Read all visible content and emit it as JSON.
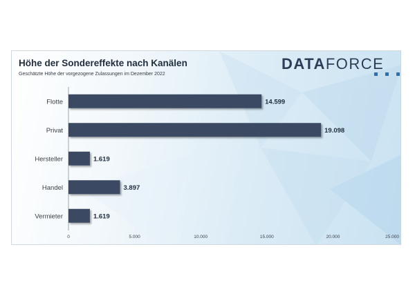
{
  "brand": {
    "logo_bold": "DATA",
    "logo_light": "FORCE"
  },
  "chart_data": {
    "type": "bar",
    "orientation": "horizontal",
    "title": "Höhe der Sondereffekte nach Kanälen",
    "subtitle": "Geschätzte Höhe der vorgezogene Zulassungen im Dezember 2022",
    "categories": [
      "Flotte",
      "Privat",
      "Hersteller",
      "Handel",
      "Vermieter"
    ],
    "values": [
      14599,
      19098,
      1619,
      3897,
      1619
    ],
    "value_labels": [
      "14.599",
      "19.098",
      "1.619",
      "3.897",
      "1.619"
    ],
    "xlim": [
      0,
      25000
    ],
    "xticks": [
      0,
      5000,
      10000,
      15000,
      20000,
      25000
    ],
    "xtick_labels": [
      "0",
      "5.000",
      "10.000",
      "15.000",
      "20.000",
      "25.000"
    ],
    "bar_color": "#3b4a63",
    "grid": false
  }
}
